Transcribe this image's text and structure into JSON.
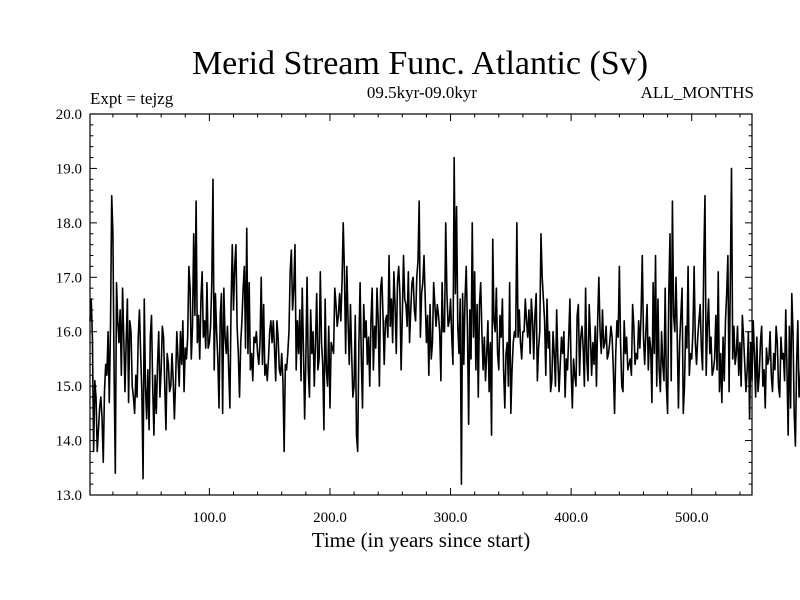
{
  "chart_data": {
    "type": "line",
    "title": "Merid Stream Func. Atlantic (Sv)",
    "subtitle_left": "Expt = tejzg",
    "subtitle_center": "09.5kyr-09.0kyr",
    "subtitle_right": "ALL_MONTHS",
    "xlabel": "Time (in years since start)",
    "ylabel": "",
    "xlim": [
      1,
      550
    ],
    "ylim": [
      13.0,
      20.0
    ],
    "x_ticks": [
      100,
      200,
      300,
      400,
      500
    ],
    "x_tick_labels": [
      "100.0",
      "200.0",
      "300.0",
      "400.0",
      "500.0"
    ],
    "y_ticks": [
      13,
      14,
      15,
      16,
      17,
      18,
      19,
      20
    ],
    "y_tick_labels": [
      "13.0",
      "14.0",
      "15.0",
      "16.0",
      "17.0",
      "18.0",
      "19.0",
      "20.0"
    ],
    "series": [
      {
        "name": "Merid Stream Func. Atlantic",
        "color": "#000000",
        "x_start": 1,
        "x_step": 1,
        "values": [
          16.2,
          16.6,
          15.9,
          13.8,
          15.1,
          14.8,
          13.8,
          14.2,
          14.6,
          14.8,
          14.4,
          13.6,
          14.9,
          15.4,
          15.2,
          16.0,
          14.7,
          16.1,
          18.5,
          17.8,
          15.2,
          13.4,
          16.9,
          16.2,
          15.8,
          16.4,
          15.2,
          16.8,
          15.9,
          14.9,
          15.8,
          16.6,
          14.7,
          16.2,
          16.0,
          15.0,
          14.8,
          14.5,
          15.2,
          14.8,
          15.9,
          16.4,
          15.6,
          14.9,
          13.3,
          16.6,
          15.0,
          14.4,
          15.3,
          14.2,
          15.9,
          16.3,
          15.0,
          14.1,
          15.2,
          14.5,
          15.4,
          16.0,
          14.8,
          15.3,
          16.1,
          15.9,
          15.0,
          14.2,
          15.6,
          15.4,
          14.9,
          15.0,
          15.6,
          15.1,
          14.4,
          15.1,
          16.0,
          15.5,
          15.0,
          16.0,
          15.4,
          16.2,
          14.9,
          15.7,
          15.5,
          15.9,
          17.2,
          16.8,
          15.5,
          16.1,
          17.8,
          16.3,
          18.4,
          15.8,
          16.3,
          15.5,
          16.6,
          17.1,
          15.9,
          16.2,
          15.7,
          16.9,
          15.7,
          15.8,
          16.1,
          16.9,
          18.8,
          15.3,
          16.7,
          16.0,
          15.5,
          14.6,
          16.3,
          16.7,
          14.5,
          16.8,
          15.9,
          15.6,
          16.1,
          15.3,
          14.6,
          16.5,
          17.6,
          16.4,
          17.2,
          17.6,
          16.1,
          15.6,
          14.8,
          15.8,
          16.2,
          16.8,
          17.2,
          15.7,
          17.9,
          15.6,
          16.9,
          15.3,
          15.6,
          15.1,
          15.9,
          15.8,
          16.0,
          15.6,
          15.4,
          15.8,
          17.0,
          15.4,
          16.5,
          15.2,
          15.4,
          15.1,
          15.5,
          16.0,
          16.2,
          15.8,
          16.2,
          15.7,
          15.1,
          16.2,
          15.9,
          15.3,
          15.2,
          15.6,
          15.1,
          13.8,
          15.4,
          15.3,
          15.6,
          16.0,
          17.1,
          17.5,
          16.4,
          16.8,
          17.6,
          15.3,
          16.2,
          15.6,
          16.4,
          15.1,
          16.8,
          15.7,
          14.4,
          15.5,
          17.0,
          15.3,
          14.8,
          16.4,
          15.6,
          16.0,
          15.0,
          15.8,
          16.7,
          15.3,
          15.5,
          17.1,
          15.8,
          15.4,
          14.2,
          16.6,
          15.3,
          15.0,
          16.1,
          14.6,
          15.8,
          15.7,
          15.6,
          16.8,
          16.5,
          16.1,
          16.3,
          16.7,
          16.2,
          16.9,
          18.0,
          17.1,
          15.6,
          17.2,
          16.2,
          15.4,
          16.5,
          15.6,
          14.8,
          15.0,
          16.3,
          14.1,
          13.8,
          15.8,
          16.9,
          15.5,
          14.6,
          16.5,
          15.9,
          16.2,
          15.4,
          15.9,
          15.0,
          16.2,
          16.8,
          15.3,
          16.1,
          15.7,
          16.8,
          16.2,
          15.0,
          16.8,
          17.0,
          16.3,
          15.4,
          16.2,
          16.3,
          15.9,
          17.4,
          16.1,
          16.6,
          15.8,
          17.1,
          16.5,
          15.6,
          16.9,
          17.2,
          16.7,
          15.3,
          16.3,
          17.4,
          16.6,
          16.5,
          16.1,
          17.1,
          15.8,
          16.4,
          16.9,
          17.0,
          16.4,
          16.2,
          17.0,
          17.3,
          18.4,
          15.9,
          16.7,
          16.9,
          17.4,
          16.6,
          15.8,
          16.3,
          15.2,
          16.5,
          15.5,
          15.8,
          16.9,
          16.5,
          16.1,
          16.5,
          16.3,
          16.0,
          15.1,
          16.9,
          16.0,
          16.0,
          18.0,
          16.7,
          16.1,
          16.2,
          16.6,
          15.9,
          15.4,
          19.2,
          16.7,
          18.3,
          16.1,
          15.6,
          16.6,
          13.2,
          16.7,
          15.4,
          16.6,
          17.2,
          16.1,
          14.3,
          16.4,
          15.5,
          18.0,
          15.9,
          17.1,
          15.3,
          16.5,
          14.8,
          16.5,
          16.9,
          16.0,
          15.3,
          15.9,
          15.1,
          15.6,
          16.2,
          14.9,
          15.8,
          14.1,
          17.7,
          16.2,
          16.0,
          16.8,
          15.6,
          15.3,
          16.3,
          15.9,
          16.6,
          15.3,
          14.6,
          15.6,
          15.8,
          15.0,
          16.9,
          14.5,
          15.3,
          15.8,
          16.0,
          15.9,
          18.0,
          15.9,
          16.4,
          15.8,
          15.5,
          16.0,
          16.0,
          16.6,
          16.2,
          15.9,
          16.4,
          15.6,
          16.6,
          16.2,
          15.5,
          16.3,
          16.7,
          15.1,
          15.7,
          16.0,
          17.8,
          17.0,
          16.6,
          16.2,
          15.2,
          16.6,
          15.7,
          16.0,
          14.9,
          15.1,
          16.0,
          15.6,
          15.0,
          16.4,
          15.5,
          14.9,
          15.4,
          15.9,
          15.6,
          16.0,
          14.8,
          15.5,
          15.3,
          15.9,
          16.6,
          15.3,
          14.6,
          15.5,
          15.2,
          15.0,
          16.3,
          16.5,
          15.2,
          15.9,
          16.1,
          15.7,
          15.0,
          16.8,
          15.5,
          15.1,
          16.5,
          15.9,
          15.2,
          15.8,
          15.4,
          16.1,
          15.0,
          16.2,
          17.0,
          16.0,
          15.6,
          16.4,
          15.7,
          15.8,
          16.1,
          15.5,
          15.6,
          15.8,
          16.1,
          15.9,
          15.3,
          14.5,
          15.6,
          16.2,
          15.9,
          17.2,
          15.8,
          15.0,
          14.9,
          16.2,
          15.6,
          15.9,
          15.3,
          15.4,
          15.5,
          15.2,
          16.5,
          16.1,
          15.4,
          15.6,
          15.5,
          16.2,
          15.7,
          16.3,
          17.4,
          15.9,
          15.4,
          16.0,
          16.5,
          15.3,
          15.9,
          15.7,
          14.7,
          16.9,
          15.6,
          17.4,
          15.0,
          16.6,
          15.3,
          14.9,
          16.0,
          15.4,
          15.1,
          16.8,
          15.0,
          14.5,
          16.7,
          17.8,
          15.1,
          18.4,
          16.3,
          16.0,
          17.0,
          15.9,
          14.6,
          15.8,
          16.3,
          16.8,
          14.5,
          15.0,
          16.1,
          15.7,
          17.2,
          15.2,
          15.6,
          15.5,
          16.0,
          17.2,
          15.8,
          15.4,
          15.9,
          16.2,
          16.5,
          15.7,
          15.3,
          17.3,
          18.5,
          15.2,
          16.1,
          16.6,
          15.6,
          15.9,
          15.2,
          15.3,
          15.5,
          16.3,
          15.3,
          17.1,
          14.9,
          15.6,
          14.7,
          15.9,
          15.1,
          16.2,
          16.7,
          17.4,
          14.9,
          16.9,
          19.0,
          15.5,
          16.1,
          15.4,
          15.6,
          16.1,
          15.2,
          15.8,
          15.0,
          16.3,
          15.9,
          15.4,
          14.9,
          15.3,
          16.0,
          14.4,
          15.8,
          15.1,
          16.2,
          15.6,
          14.8,
          15.9,
          14.9,
          15.2,
          15.8,
          16.1,
          15.0,
          15.3,
          14.6,
          15.7,
          15.4,
          15.5,
          16.0,
          15.2,
          14.9,
          15.6,
          15.3,
          16.1,
          15.8,
          15.0,
          14.8,
          15.9,
          15.5,
          15.6,
          15.1,
          16.4,
          15.3,
          14.1,
          16.1,
          14.6,
          16.7,
          16.0,
          14.5,
          13.9,
          15.4,
          16.2,
          14.8,
          15.1,
          15.6
        ]
      }
    ]
  }
}
